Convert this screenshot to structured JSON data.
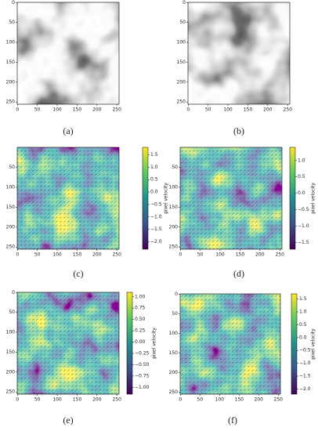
{
  "chart_data": [
    {
      "type": "image",
      "caption": "(a)",
      "xlim": [
        -0.5,
        255.5
      ],
      "ylim": [
        255.5,
        -0.5
      ],
      "xticks": [
        0,
        50,
        100,
        150,
        200,
        250
      ],
      "yticks": [
        0,
        50,
        100,
        150,
        200,
        250
      ]
    },
    {
      "type": "image",
      "caption": "(b)",
      "xlim": [
        -0.5,
        255.5
      ],
      "ylim": [
        255.5,
        -0.5
      ],
      "xticks": [
        0,
        50,
        100,
        150,
        200,
        250
      ],
      "yticks": [
        0,
        50,
        100,
        150,
        200,
        250
      ]
    },
    {
      "type": "heatmap",
      "caption": "(c)",
      "colorbar_label": "pixel velocity",
      "xlim": [
        -0.5,
        255.5
      ],
      "ylim": [
        255.5,
        -0.5
      ],
      "xticks": [
        0,
        50,
        100,
        150,
        200,
        250
      ],
      "yticks": [
        50,
        100,
        150,
        200,
        250
      ],
      "clim": [
        -2.3,
        1.8
      ],
      "cticks": [
        {
          "value": 1.5,
          "label": "1.5"
        },
        {
          "value": 1,
          "label": "1.0"
        },
        {
          "value": 0.5,
          "label": "0.5"
        },
        {
          "value": 0,
          "label": "0.0"
        },
        {
          "value": -0.5,
          "label": "−0.5"
        },
        {
          "value": -1,
          "label": "−1.0"
        },
        {
          "value": -1.5,
          "label": "−1.5"
        },
        {
          "value": -2,
          "label": "−2.0"
        }
      ]
    },
    {
      "type": "heatmap",
      "caption": "(d)",
      "colorbar_label": "pixel velocity",
      "xlim": [
        -0.5,
        255.5
      ],
      "ylim": [
        255.5,
        -0.5
      ],
      "xticks": [
        0,
        50,
        100,
        150,
        200,
        250
      ],
      "yticks": [
        50,
        100,
        150,
        200,
        250
      ],
      "clim": [
        -1.7,
        1.4
      ],
      "cticks": [
        {
          "value": 1,
          "label": "1.0"
        },
        {
          "value": 0.5,
          "label": "0.5"
        },
        {
          "value": 0,
          "label": "0.0"
        },
        {
          "value": -0.5,
          "label": "−0.5"
        },
        {
          "value": -1,
          "label": "−1.0"
        },
        {
          "value": -1.5,
          "label": "−1.5"
        }
      ]
    },
    {
      "type": "heatmap",
      "caption": "(e)",
      "colorbar_label": "pixel velocity",
      "xlim": [
        -0.5,
        255.5
      ],
      "ylim": [
        255.5,
        -0.5
      ],
      "xticks": [
        0,
        50,
        100,
        150,
        200,
        250
      ],
      "yticks": [
        0,
        50,
        100,
        150,
        200,
        250
      ],
      "clim": [
        -1.15,
        1.1
      ],
      "cticks": [
        {
          "value": 1,
          "label": "1.00"
        },
        {
          "value": 0.75,
          "label": "0.75"
        },
        {
          "value": 0.5,
          "label": "0.50"
        },
        {
          "value": 0.25,
          "label": "0.25"
        },
        {
          "value": 0,
          "label": "0.00"
        },
        {
          "value": -0.25,
          "label": "−0.25"
        },
        {
          "value": -0.5,
          "label": "−0.50"
        },
        {
          "value": -0.75,
          "label": "−0.75"
        },
        {
          "value": -1,
          "label": "−1.00"
        }
      ]
    },
    {
      "type": "heatmap",
      "caption": "(f)",
      "colorbar_label": "pixel velocity",
      "xlim": [
        -0.5,
        255.5
      ],
      "ylim": [
        255.5,
        -0.5
      ],
      "xticks": [
        0,
        50,
        100,
        150,
        200,
        250
      ],
      "yticks": [
        0,
        50,
        100,
        150,
        200,
        250
      ],
      "clim": [
        -2.2,
        1.7
      ],
      "cticks": [
        {
          "value": 1.5,
          "label": "1.5"
        },
        {
          "value": 1,
          "label": "1.0"
        },
        {
          "value": 0.5,
          "label": "0.5"
        },
        {
          "value": 0,
          "label": "0.0"
        },
        {
          "value": -0.5,
          "label": "−0.5"
        },
        {
          "value": -1,
          "label": "−1.0"
        },
        {
          "value": -1.5,
          "label": "−1.5"
        },
        {
          "value": -2,
          "label": "−2.0"
        }
      ]
    }
  ]
}
